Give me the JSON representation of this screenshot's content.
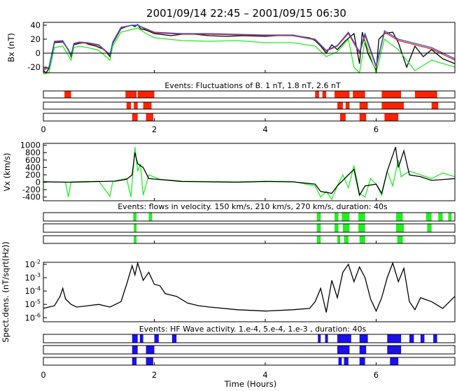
{
  "title": "2001/09/14 22:45 – 2001/09/15 06:30",
  "xlabel": "Time (Hours)",
  "colors": {
    "black": "#000000",
    "red": "#ff2200",
    "green": "#22ee22",
    "blue": "#2255dd",
    "event_red": "#ff2200",
    "event_green": "#22ee22",
    "event_blue": "#1a10e8"
  },
  "chart_data": [
    {
      "type": "line",
      "ylabel": "Bx (nT)",
      "xlim": [
        0,
        7.42
      ],
      "ylim": [
        -28,
        44
      ],
      "yticks": [
        -20,
        0,
        20,
        40
      ],
      "zero_line": true,
      "series": [
        {
          "color": "#000000",
          "x": [
            0,
            0.05,
            0.1,
            0.2,
            0.35,
            0.45,
            0.5,
            0.55,
            0.65,
            0.75,
            0.8,
            0.95,
            1.1,
            1.2,
            1.25,
            1.4,
            1.5,
            1.6,
            1.65,
            1.7,
            1.75,
            1.85,
            2.0,
            2.3,
            2.6,
            3.0,
            3.3,
            3.6,
            4.0,
            4.4,
            4.8,
            4.9,
            5.0,
            5.1,
            5.2,
            5.3,
            5.45,
            5.6,
            5.7,
            5.75,
            5.85,
            6.0,
            6.05,
            6.15,
            6.3,
            6.4,
            6.55,
            6.7,
            6.85,
            7.0,
            7.2,
            7.42
          ],
          "y": [
            -25,
            -28,
            -22,
            15,
            16,
            5,
            -5,
            12,
            14,
            15,
            13,
            10,
            5,
            -5,
            14,
            35,
            38,
            40,
            38,
            41,
            35,
            33,
            28,
            25,
            28,
            25,
            24,
            25,
            24,
            26,
            22,
            18,
            10,
            0,
            12,
            5,
            18,
            28,
            -15,
            30,
            0,
            -25,
            20,
            28,
            30,
            15,
            -20,
            10,
            -5,
            5,
            -8,
            -15
          ]
        },
        {
          "color": "#ff2200",
          "x": [
            0,
            0.1,
            0.2,
            0.35,
            0.5,
            0.55,
            0.65,
            0.8,
            1.0,
            1.2,
            1.25,
            1.4,
            1.6,
            1.7,
            1.85,
            2.0,
            2.5,
            3.0,
            3.5,
            4.0,
            4.5,
            4.9,
            5.1,
            5.3,
            5.5,
            5.7,
            5.8,
            6.0,
            6.15,
            6.4,
            6.7,
            7.0,
            7.42
          ],
          "y": [
            -22,
            -20,
            16,
            17,
            -3,
            13,
            15,
            14,
            11,
            -3,
            15,
            36,
            40,
            40,
            34,
            29,
            27,
            27,
            26,
            25,
            25,
            19,
            3,
            10,
            28,
            0,
            25,
            -20,
            30,
            18,
            12,
            6,
            -10
          ]
        },
        {
          "color": "#22ee22",
          "x": [
            0,
            0.1,
            0.2,
            0.35,
            0.5,
            0.55,
            0.65,
            0.8,
            1.0,
            1.2,
            1.25,
            1.4,
            1.6,
            1.7,
            1.85,
            2.0,
            2.5,
            3.0,
            3.5,
            4.0,
            4.5,
            4.9,
            5.1,
            5.3,
            5.5,
            5.6,
            5.7,
            5.8,
            6.0,
            6.15,
            6.4,
            6.7,
            7.0,
            7.42
          ],
          "y": [
            -30,
            -28,
            8,
            10,
            -10,
            8,
            10,
            8,
            4,
            -10,
            10,
            30,
            34,
            36,
            28,
            22,
            18,
            17,
            18,
            15,
            15,
            10,
            -5,
            2,
            20,
            -20,
            -28,
            18,
            -28,
            20,
            5,
            -25,
            -10,
            -20
          ]
        },
        {
          "color": "#2255dd",
          "x": [
            0,
            0.1,
            0.2,
            0.35,
            0.5,
            0.55,
            0.65,
            0.8,
            1.0,
            1.2,
            1.25,
            1.4,
            1.6,
            1.7,
            1.85,
            2.0,
            2.5,
            3.0,
            3.5,
            4.0,
            4.5,
            4.9,
            5.1,
            5.3,
            5.5,
            5.7,
            5.8,
            6.0,
            6.15,
            6.4,
            6.7,
            7.0,
            7.42
          ],
          "y": [
            -24,
            -21,
            17,
            18,
            -2,
            14,
            16,
            15,
            12,
            -2,
            16,
            37,
            40,
            40,
            35,
            30,
            28,
            28,
            27,
            26,
            26,
            20,
            4,
            11,
            30,
            2,
            28,
            -18,
            32,
            20,
            14,
            8,
            -8
          ]
        }
      ]
    },
    {
      "type": "event",
      "title": "Events: Fluctuations of B. 1 nT, 1.8 nT, 2.6 nT",
      "rows": [
        [
          [
            0.38,
            0.5
          ],
          [
            1.48,
            1.68
          ],
          [
            1.7,
            2.0
          ],
          [
            4.9,
            4.97
          ],
          [
            5.03,
            5.1
          ],
          [
            5.25,
            5.52
          ],
          [
            5.58,
            5.8
          ],
          [
            6.1,
            6.45
          ],
          [
            6.7,
            7.1
          ]
        ],
        [
          [
            1.5,
            1.58
          ],
          [
            1.63,
            1.7
          ],
          [
            1.8,
            1.95
          ],
          [
            5.3,
            5.4
          ],
          [
            5.45,
            5.52
          ],
          [
            5.7,
            5.85
          ],
          [
            6.1,
            6.5
          ],
          [
            7.0,
            7.12
          ]
        ],
        [
          [
            1.6,
            1.7
          ],
          [
            1.85,
            1.98
          ],
          [
            5.35,
            5.45
          ],
          [
            5.7,
            5.82
          ],
          [
            6.15,
            6.4
          ]
        ]
      ]
    },
    {
      "type": "line",
      "ylabel": "Vx (km/s)",
      "xlim": [
        0,
        7.42
      ],
      "ylim": [
        -500,
        1050
      ],
      "yticks": [
        -400,
        -200,
        0,
        200,
        400,
        600,
        800,
        1000
      ],
      "zero_line": false,
      "series": [
        {
          "color": "#22ee22",
          "x": [
            0,
            0.4,
            0.45,
            0.5,
            1.0,
            1.2,
            1.25,
            1.3,
            1.5,
            1.58,
            1.65,
            1.7,
            1.75,
            1.8,
            1.9,
            2.1,
            2.5,
            3.0,
            3.5,
            4.0,
            4.5,
            4.9,
            5.0,
            5.1,
            5.2,
            5.3,
            5.4,
            5.5,
            5.6,
            5.7,
            5.8,
            5.9,
            6.0,
            6.1,
            6.2,
            6.3,
            6.4,
            6.45,
            6.6,
            6.8,
            7.0,
            7.2,
            7.42
          ],
          "y": [
            20,
            0,
            -400,
            10,
            30,
            -380,
            20,
            40,
            100,
            -400,
            950,
            300,
            500,
            -350,
            200,
            80,
            30,
            20,
            10,
            30,
            20,
            -100,
            -400,
            -250,
            -460,
            -100,
            200,
            -150,
            450,
            -300,
            -400,
            100,
            -50,
            -350,
            300,
            -100,
            600,
            150,
            300,
            200,
            100,
            250,
            150
          ]
        },
        {
          "color": "#000000",
          "x": [
            0,
            0.5,
            1.0,
            1.3,
            1.5,
            1.6,
            1.65,
            1.7,
            1.8,
            1.9,
            2.2,
            2.5,
            3.0,
            3.5,
            4.0,
            4.5,
            4.9,
            5.0,
            5.2,
            5.3,
            5.5,
            5.6,
            5.7,
            5.8,
            6.0,
            6.1,
            6.2,
            6.35,
            6.4,
            6.5,
            6.6,
            6.8,
            7.0,
            7.42
          ],
          "y": [
            10,
            0,
            20,
            30,
            80,
            200,
            800,
            500,
            400,
            100,
            60,
            20,
            10,
            0,
            20,
            10,
            -50,
            -250,
            -300,
            -100,
            200,
            350,
            -350,
            -100,
            -50,
            -300,
            300,
            950,
            400,
            850,
            200,
            150,
            50,
            100
          ]
        }
      ]
    },
    {
      "type": "event",
      "title": "Events: flows in velocity. 150 km/s, 210 km/s, 270 km/s, duration: 40s",
      "rows": [
        [
          [
            1.62,
            1.68
          ],
          [
            1.9,
            1.96
          ],
          [
            4.93,
            5.0
          ],
          [
            5.25,
            5.32
          ],
          [
            5.38,
            5.52
          ],
          [
            5.68,
            5.8
          ],
          [
            6.36,
            6.48
          ],
          [
            6.9,
            7.0
          ],
          [
            7.12,
            7.2
          ],
          [
            7.3,
            7.36
          ]
        ],
        [
          [
            1.63,
            1.68
          ],
          [
            4.93,
            5.0
          ],
          [
            5.25,
            5.32
          ],
          [
            5.4,
            5.52
          ],
          [
            5.68,
            5.8
          ],
          [
            6.36,
            6.5
          ],
          [
            6.92,
            7.0
          ]
        ],
        [
          [
            1.63,
            1.68
          ],
          [
            4.93,
            5.0
          ],
          [
            5.3,
            5.35
          ],
          [
            5.42,
            5.5
          ],
          [
            5.7,
            5.8
          ],
          [
            6.38,
            6.48
          ]
        ]
      ]
    },
    {
      "type": "line",
      "ylabel": "Spect.dens. (nT/sqrt(Hz))",
      "xlim": [
        0,
        7.42
      ],
      "ylim_log": [
        -6.3,
        -1.85
      ],
      "yticks": [
        "10^-6",
        "10^-5",
        "10^-4",
        "10^-3",
        "10^-2"
      ],
      "series": [
        {
          "color": "#000000",
          "x": [
            0,
            0.2,
            0.3,
            0.35,
            0.4,
            0.5,
            0.6,
            0.8,
            1.0,
            1.2,
            1.4,
            1.5,
            1.6,
            1.65,
            1.7,
            1.8,
            1.9,
            2.0,
            2.1,
            2.2,
            2.4,
            2.6,
            2.8,
            3.0,
            3.5,
            4.0,
            4.5,
            4.8,
            4.9,
            5.0,
            5.1,
            5.2,
            5.3,
            5.4,
            5.5,
            5.6,
            5.7,
            5.8,
            5.9,
            6.0,
            6.1,
            6.2,
            6.3,
            6.4,
            6.5,
            6.6,
            6.7,
            6.8,
            7.0,
            7.2,
            7.42
          ],
          "y": [
            -5.3,
            -5.1,
            -4.4,
            -3.8,
            -4.6,
            -5.0,
            -5.2,
            -5.1,
            -5.0,
            -5.2,
            -4.8,
            -3.5,
            -2.1,
            -2.8,
            -1.9,
            -3.2,
            -2.6,
            -3.5,
            -3.6,
            -4.2,
            -4.4,
            -4.9,
            -5.1,
            -5.2,
            -5.4,
            -5.5,
            -5.4,
            -5.3,
            -4.8,
            -3.8,
            -5.6,
            -3.2,
            -4.5,
            -2.6,
            -2.0,
            -3.3,
            -2.2,
            -3.0,
            -4.6,
            -5.5,
            -4.5,
            -3.0,
            -1.9,
            -3.3,
            -2.3,
            -4.8,
            -5.4,
            -4.5,
            -4.8,
            -5.3,
            -4.4
          ]
        }
      ]
    },
    {
      "type": "event",
      "title": "Events: HF Wave activity. 1.e-4, 5.e-4, 1.e-3 , duration: 40s",
      "rows": [
        [
          [
            1.6,
            1.7
          ],
          [
            1.74,
            1.8
          ],
          [
            2.0,
            2.08
          ],
          [
            2.32,
            2.4
          ],
          [
            4.95,
            5.0
          ],
          [
            5.08,
            5.13
          ],
          [
            5.3,
            5.55
          ],
          [
            5.7,
            5.85
          ],
          [
            6.2,
            6.45
          ],
          [
            6.6,
            6.68
          ],
          [
            6.8,
            6.87
          ],
          [
            7.03,
            7.1
          ]
        ],
        [
          [
            1.6,
            1.7
          ],
          [
            1.85,
            2.0
          ],
          [
            5.3,
            5.52
          ],
          [
            5.7,
            5.82
          ],
          [
            6.2,
            6.45
          ]
        ],
        [
          [
            1.6,
            1.68
          ],
          [
            1.85,
            1.98
          ],
          [
            5.32,
            5.38
          ],
          [
            5.42,
            5.5
          ],
          [
            5.7,
            5.8
          ],
          [
            6.25,
            6.4
          ]
        ]
      ]
    }
  ],
  "event_xticks": [
    "0",
    "2",
    "4",
    "6"
  ],
  "event_xtick_values": [
    0,
    2,
    4,
    6
  ]
}
